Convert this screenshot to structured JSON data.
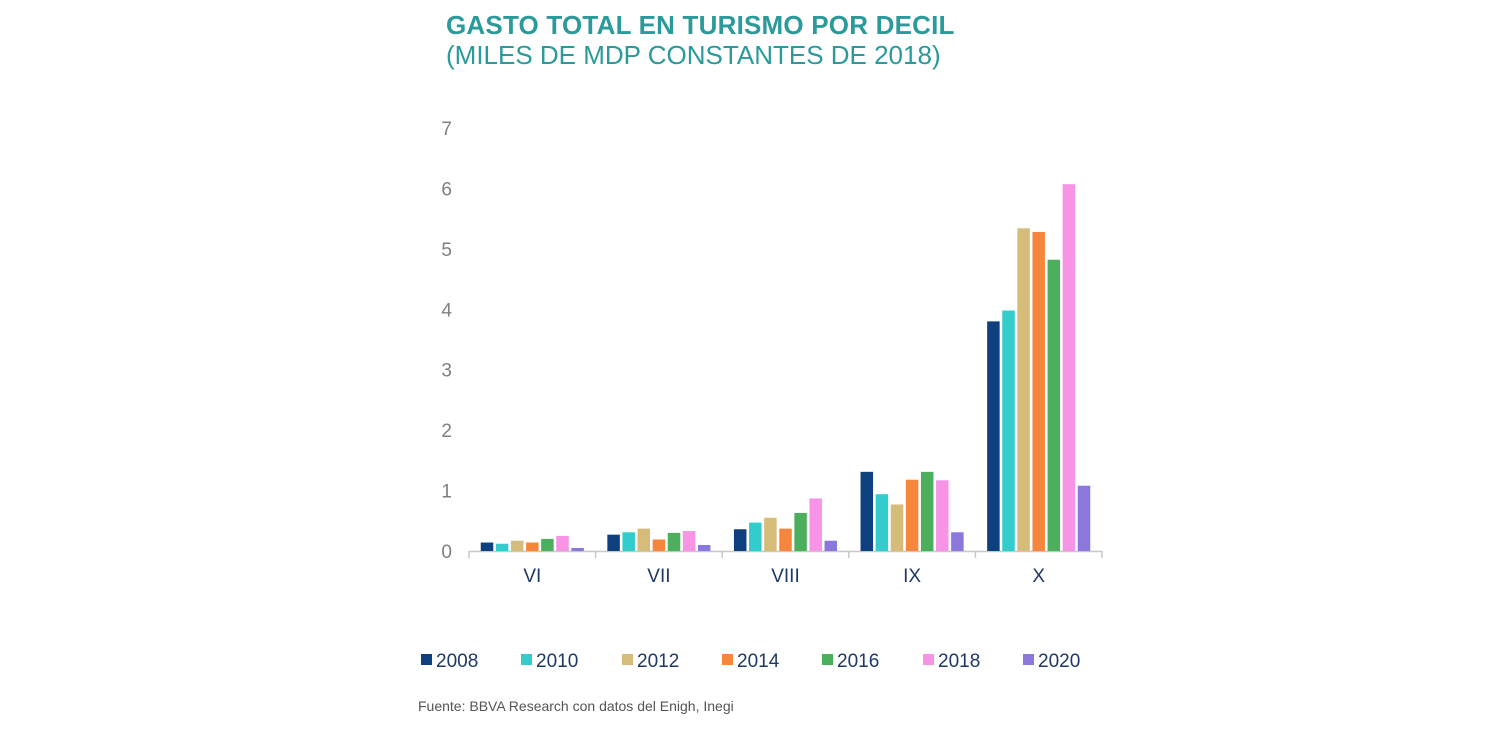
{
  "header": {
    "title": "GASTO TOTAL EN TURISMO POR DECIL",
    "subtitle": "(MILES DE MDP CONSTANTES DE 2018)"
  },
  "footer": {
    "source": "Fuente: BBVA Research con datos del  Enigh, Inegi"
  },
  "chart_data": {
    "type": "bar",
    "title": "GASTO TOTAL EN TURISMO POR DECIL",
    "subtitle": "(MILES DE MDP CONSTANTES DE 2018)",
    "xlabel": "",
    "ylabel": "",
    "ylim": [
      0,
      7
    ],
    "yticks": [
      "0",
      "1",
      "2",
      "3",
      "4",
      "5",
      "6",
      "7"
    ],
    "grid": false,
    "legend_position": "bottom",
    "categories": [
      "VI",
      "VII",
      "VIII",
      "IX",
      "X"
    ],
    "series": [
      {
        "name": "2008",
        "color": "#0e3f7e",
        "values": [
          0.14,
          0.27,
          0.36,
          1.31,
          3.8
        ]
      },
      {
        "name": "2010",
        "color": "#33cccc",
        "values": [
          0.12,
          0.31,
          0.47,
          0.94,
          3.98
        ]
      },
      {
        "name": "2012",
        "color": "#d6bc79",
        "values": [
          0.17,
          0.37,
          0.55,
          0.77,
          5.34
        ]
      },
      {
        "name": "2014",
        "color": "#f5863c",
        "values": [
          0.14,
          0.19,
          0.37,
          1.18,
          5.28
        ]
      },
      {
        "name": "2016",
        "color": "#4caf5e",
        "values": [
          0.2,
          0.3,
          0.63,
          1.31,
          4.82
        ]
      },
      {
        "name": "2018",
        "color": "#f794e5",
        "values": [
          0.25,
          0.33,
          0.87,
          1.17,
          6.07
        ]
      },
      {
        "name": "2020",
        "color": "#8c77dd",
        "values": [
          0.05,
          0.1,
          0.17,
          0.31,
          1.08
        ]
      }
    ]
  }
}
